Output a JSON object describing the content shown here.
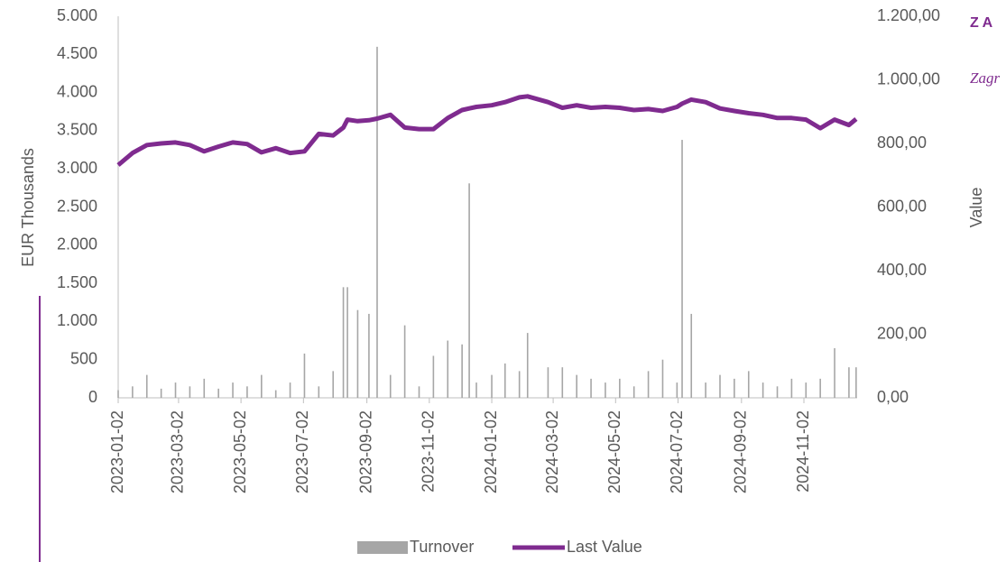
{
  "chart_data": {
    "type": "bar-line",
    "y_axis_label": "EUR Thousands",
    "y2_axis_label": "Value",
    "side_texts": [
      "Z A",
      "Zagr"
    ],
    "x": [
      "2023-01-02",
      "2023-01-16",
      "2023-01-30",
      "2023-02-13",
      "2023-02-27",
      "2023-03-13",
      "2023-03-27",
      "2023-04-10",
      "2023-04-24",
      "2023-05-08",
      "2023-05-22",
      "2023-06-05",
      "2023-06-19",
      "2023-07-03",
      "2023-07-17",
      "2023-07-31",
      "2023-08-10",
      "2023-08-14",
      "2023-08-24",
      "2023-09-04",
      "2023-09-12",
      "2023-09-25",
      "2023-10-09",
      "2023-10-23",
      "2023-11-06",
      "2023-11-20",
      "2023-12-04",
      "2023-12-11",
      "2023-12-18",
      "2024-01-02",
      "2024-01-15",
      "2024-01-29",
      "2024-02-06",
      "2024-02-26",
      "2024-03-11",
      "2024-03-25",
      "2024-04-08",
      "2024-04-22",
      "2024-05-06",
      "2024-05-20",
      "2024-06-03",
      "2024-06-17",
      "2024-07-01",
      "2024-07-06",
      "2024-07-15",
      "2024-07-29",
      "2024-08-12",
      "2024-08-26",
      "2024-09-09",
      "2024-09-23",
      "2024-10-07",
      "2024-10-21",
      "2024-11-04",
      "2024-11-18",
      "2024-12-02",
      "2024-12-16",
      "2024-12-23"
    ],
    "series": [
      {
        "name": "Turnover",
        "color": "#a6a6a6",
        "axis": "y",
        "values": [
          100,
          150,
          300,
          120,
          200,
          150,
          250,
          120,
          200,
          150,
          300,
          100,
          200,
          580,
          150,
          350,
          1450,
          1450,
          1150,
          1100,
          4600,
          300,
          950,
          150,
          550,
          750,
          700,
          2810,
          200,
          300,
          450,
          350,
          850,
          400,
          400,
          300,
          250,
          200,
          250,
          150,
          350,
          500,
          200,
          3380,
          1100,
          200,
          300,
          250,
          350,
          200,
          150,
          250,
          200,
          250,
          650,
          400,
          400
        ]
      },
      {
        "name": "Last Value",
        "color": "#7f2b8f",
        "axis": "y2",
        "values": [
          732,
          770,
          795,
          800,
          803,
          795,
          775,
          790,
          803,
          798,
          772,
          785,
          770,
          775,
          830,
          825,
          850,
          875,
          870,
          873,
          878,
          890,
          850,
          845,
          845,
          880,
          905,
          910,
          915,
          920,
          930,
          945,
          948,
          930,
          912,
          920,
          912,
          915,
          912,
          905,
          908,
          902,
          915,
          925,
          938,
          930,
          910,
          902,
          895,
          890,
          880,
          880,
          875,
          848,
          875,
          858,
          877
        ]
      }
    ],
    "xlim": [
      "2023-01-02",
      "2024-12-24"
    ],
    "xticks": [
      "2023-01-02",
      "2023-03-02",
      "2023-05-02",
      "2023-07-02",
      "2023-09-02",
      "2023-11-02",
      "2024-01-02",
      "2024-03-02",
      "2024-05-02",
      "2024-07-02",
      "2024-09-02",
      "2024-11-02"
    ],
    "ylim": [
      0,
      5000
    ],
    "yticks": [
      0,
      500,
      {
        "value": 1000,
        "label": "1.000"
      },
      {
        "value": 1500,
        "label": "1.500"
      },
      {
        "value": 2000,
        "label": "2.000"
      },
      {
        "value": 2500,
        "label": "2.500"
      },
      {
        "value": 3000,
        "label": "3.000"
      },
      {
        "value": 3500,
        "label": "3.500"
      },
      {
        "value": 4000,
        "label": "4.000"
      },
      {
        "value": 4500,
        "label": "4.500"
      },
      {
        "value": 5000,
        "label": "5.000"
      }
    ],
    "y2lim": [
      0,
      1200
    ],
    "y2ticks": [
      {
        "value": 0,
        "label": "0,00"
      },
      {
        "value": 200,
        "label": "200,00"
      },
      {
        "value": 400,
        "label": "400,00"
      },
      {
        "value": 600,
        "label": "600,00"
      },
      {
        "value": 800,
        "label": "800,00"
      },
      {
        "value": 1000,
        "label": "1.000,00"
      },
      {
        "value": 1200,
        "label": "1.200,00"
      }
    ],
    "legend": "bottom"
  }
}
